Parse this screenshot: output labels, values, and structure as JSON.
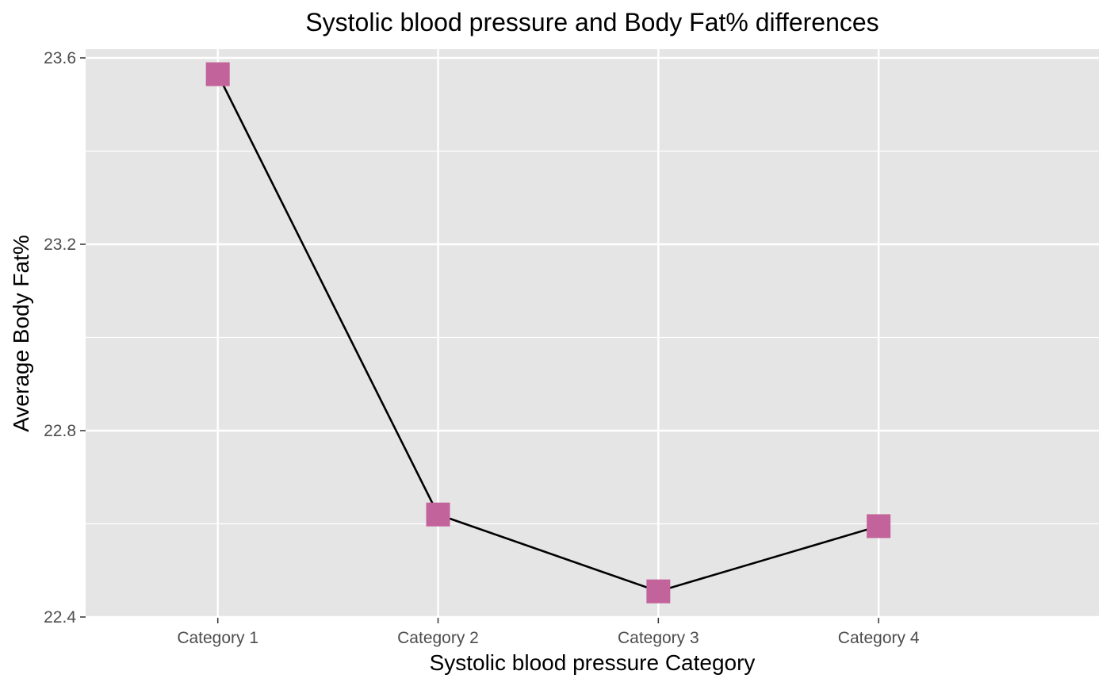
{
  "chart_data": {
    "type": "line",
    "title": "Systolic blood pressure and Body Fat% differences",
    "xlabel": "Systolic blood pressure Category",
    "ylabel": "Average Body Fat%",
    "categories": [
      "Category 1",
      "Category 2",
      "Category 3",
      "Category 4"
    ],
    "series": [
      {
        "values": [
          23.565,
          22.62,
          22.455,
          22.595
        ],
        "line_color": "#000000",
        "marker": "square",
        "marker_color": "#C2639B"
      }
    ],
    "ylim": [
      22.4,
      23.6
    ],
    "y_ticks": [
      "22.4",
      "22.8",
      "23.2",
      "23.6"
    ],
    "grid": true,
    "legend": "none",
    "panel_background": "#E5E5E5",
    "grid_color": "#FFFFFF"
  }
}
